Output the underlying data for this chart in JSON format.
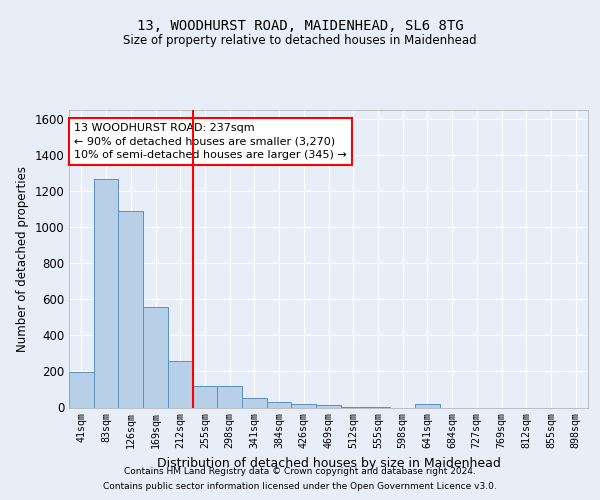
{
  "title1": "13, WOODHURST ROAD, MAIDENHEAD, SL6 8TG",
  "title2": "Size of property relative to detached houses in Maidenhead",
  "xlabel": "Distribution of detached houses by size in Maidenhead",
  "ylabel": "Number of detached properties",
  "categories": [
    "41sqm",
    "83sqm",
    "126sqm",
    "169sqm",
    "212sqm",
    "255sqm",
    "298sqm",
    "341sqm",
    "384sqm",
    "426sqm",
    "469sqm",
    "512sqm",
    "555sqm",
    "598sqm",
    "641sqm",
    "684sqm",
    "727sqm",
    "769sqm",
    "812sqm",
    "855sqm",
    "898sqm"
  ],
  "values": [
    195,
    1270,
    1090,
    560,
    260,
    120,
    120,
    55,
    30,
    20,
    15,
    5,
    5,
    0,
    20,
    0,
    0,
    0,
    0,
    0,
    0
  ],
  "bar_color": "#b8cfe8",
  "bar_edge_color": "#5a8fc0",
  "vline_color": "red",
  "vline_pos": 4.5,
  "annotation_text": "13 WOODHURST ROAD: 237sqm\n← 90% of detached houses are smaller (3,270)\n10% of semi-detached houses are larger (345) →",
  "annotation_box_color": "white",
  "annotation_box_edge": "red",
  "ylim": [
    0,
    1650
  ],
  "yticks": [
    0,
    200,
    400,
    600,
    800,
    1000,
    1200,
    1400,
    1600
  ],
  "footer1": "Contains HM Land Registry data © Crown copyright and database right 2024.",
  "footer2": "Contains public sector information licensed under the Open Government Licence v3.0.",
  "bg_color": "#e8eef7",
  "plot_bg_color": "#e8eef7"
}
